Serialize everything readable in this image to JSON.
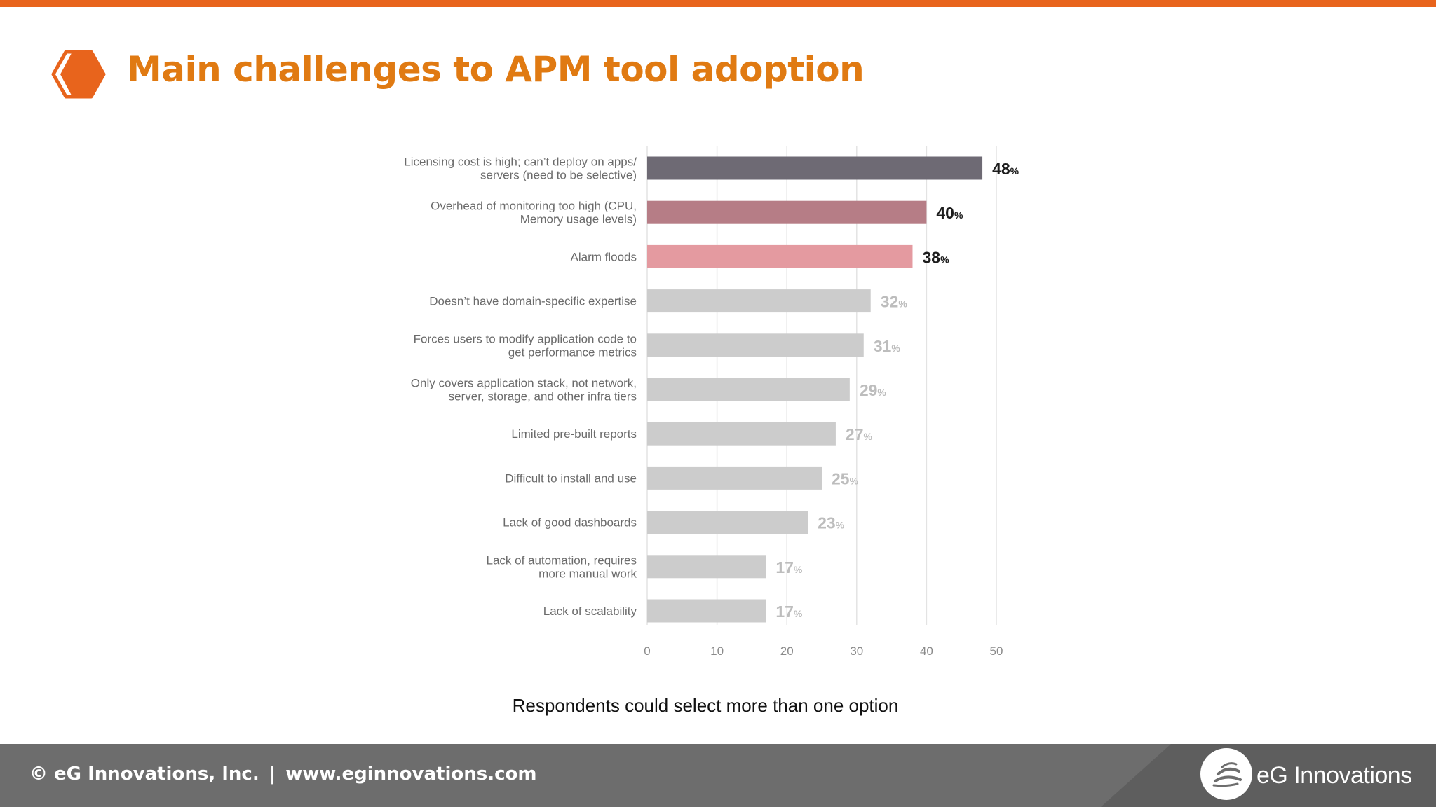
{
  "slide": {
    "title": "Main challenges to APM tool adoption",
    "note": "Respondents could select more than one option",
    "accent_color": "#e8641c",
    "title_color": "#e07a12",
    "title_icon": "hexagon-icon"
  },
  "footer": {
    "copyright": "© eG Innovations, Inc.",
    "separator": "|",
    "website": "www.eginnovations.com",
    "brand": "eG Innovations",
    "logo_icon": "eg-logo-icon",
    "background_color": "#6d6d6d"
  },
  "chart_data": {
    "type": "bar",
    "orientation": "horizontal",
    "categories": [
      [
        "Licensing cost is high; can’t deploy on apps/",
        "servers (need to be selective)"
      ],
      [
        "Overhead of monitoring too high (CPU,",
        "Memory usage levels)"
      ],
      [
        "Alarm floods"
      ],
      [
        "Doesn’t have domain-specific expertise"
      ],
      [
        "Forces users to modify application code to",
        "get performance metrics"
      ],
      [
        "Only covers application stack, not network,",
        "server, storage, and other infra tiers"
      ],
      [
        "Limited pre-built reports"
      ],
      [
        "Difficult to install and use"
      ],
      [
        "Lack of good dashboards"
      ],
      [
        "Lack of automation, requires",
        "more manual work"
      ],
      [
        "Lack of scalability"
      ]
    ],
    "values": [
      48,
      40,
      38,
      32,
      31,
      29,
      27,
      25,
      23,
      17,
      17
    ],
    "value_suffix": "%",
    "bar_colors": [
      "#6e6a74",
      "#b67d86",
      "#e49aa0",
      "#cccccc",
      "#cccccc",
      "#cccccc",
      "#cccccc",
      "#cccccc",
      "#cccccc",
      "#cccccc",
      "#cccccc"
    ],
    "label_colors": [
      "#1d1d1d",
      "#1d1d1d",
      "#1d1d1d",
      "#bdbdbd",
      "#bdbdbd",
      "#bdbdbd",
      "#bdbdbd",
      "#bdbdbd",
      "#bdbdbd",
      "#bdbdbd",
      "#bdbdbd"
    ],
    "xticks": [
      0,
      10,
      20,
      30,
      40,
      50
    ],
    "xlim": [
      0,
      50
    ],
    "grid": true,
    "title": "",
    "xlabel": "",
    "ylabel": ""
  }
}
